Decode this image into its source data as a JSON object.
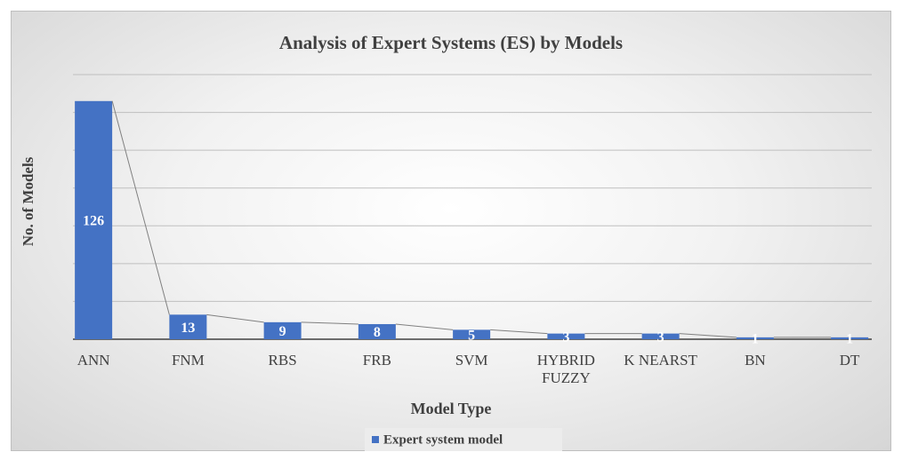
{
  "chart_data": {
    "type": "bar",
    "title": "Analysis of Expert Systems (ES) by Models",
    "x_label": "Model Type",
    "y_label": "No. of Models",
    "categories": [
      "ANN",
      "FNM",
      "RBS",
      "FRB",
      "SVM",
      "HYBRID FUZZY",
      "K NEARST",
      "BN",
      "DT"
    ],
    "series": [
      {
        "name": "Expert system model",
        "color": "#4472c4",
        "values": [
          126,
          13,
          9,
          8,
          5,
          3,
          3,
          1,
          1
        ]
      }
    ],
    "ylim": [
      0,
      140
    ],
    "yticks": [
      0,
      20,
      40,
      60,
      80,
      100,
      120,
      140
    ],
    "grid": true,
    "legend": "bottom"
  }
}
